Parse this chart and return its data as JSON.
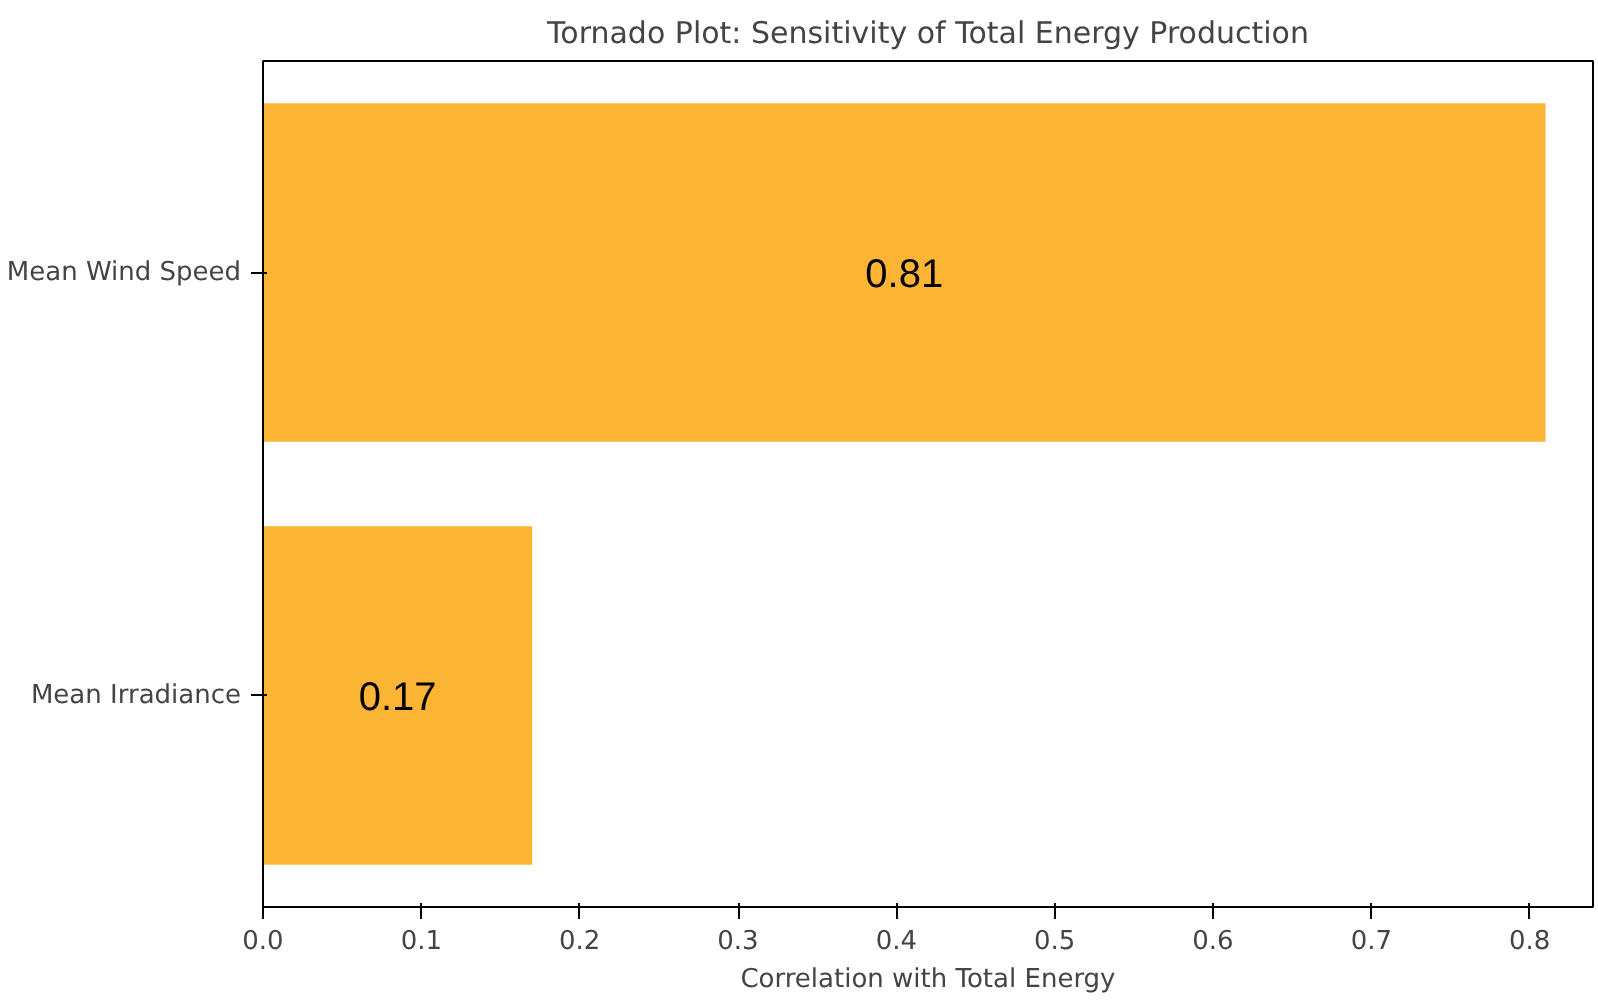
{
  "chart_data": {
    "type": "bar",
    "orientation": "horizontal",
    "title": "Tornado Plot: Sensitivity of Total Energy Production",
    "xlabel": "Correlation with Total Energy",
    "categories": [
      "Mean Wind Speed",
      "Mean Irradiance"
    ],
    "values": [
      0.81,
      0.17
    ],
    "color": "#fbb434",
    "xlim": [
      0,
      0.84
    ],
    "xticks": [
      {
        "value": 0,
        "label": "0.0"
      },
      0.1,
      0.2,
      0.3,
      0.4,
      0.5,
      0.6,
      0.7,
      0.8
    ],
    "data_labels": true,
    "grid": false
  }
}
